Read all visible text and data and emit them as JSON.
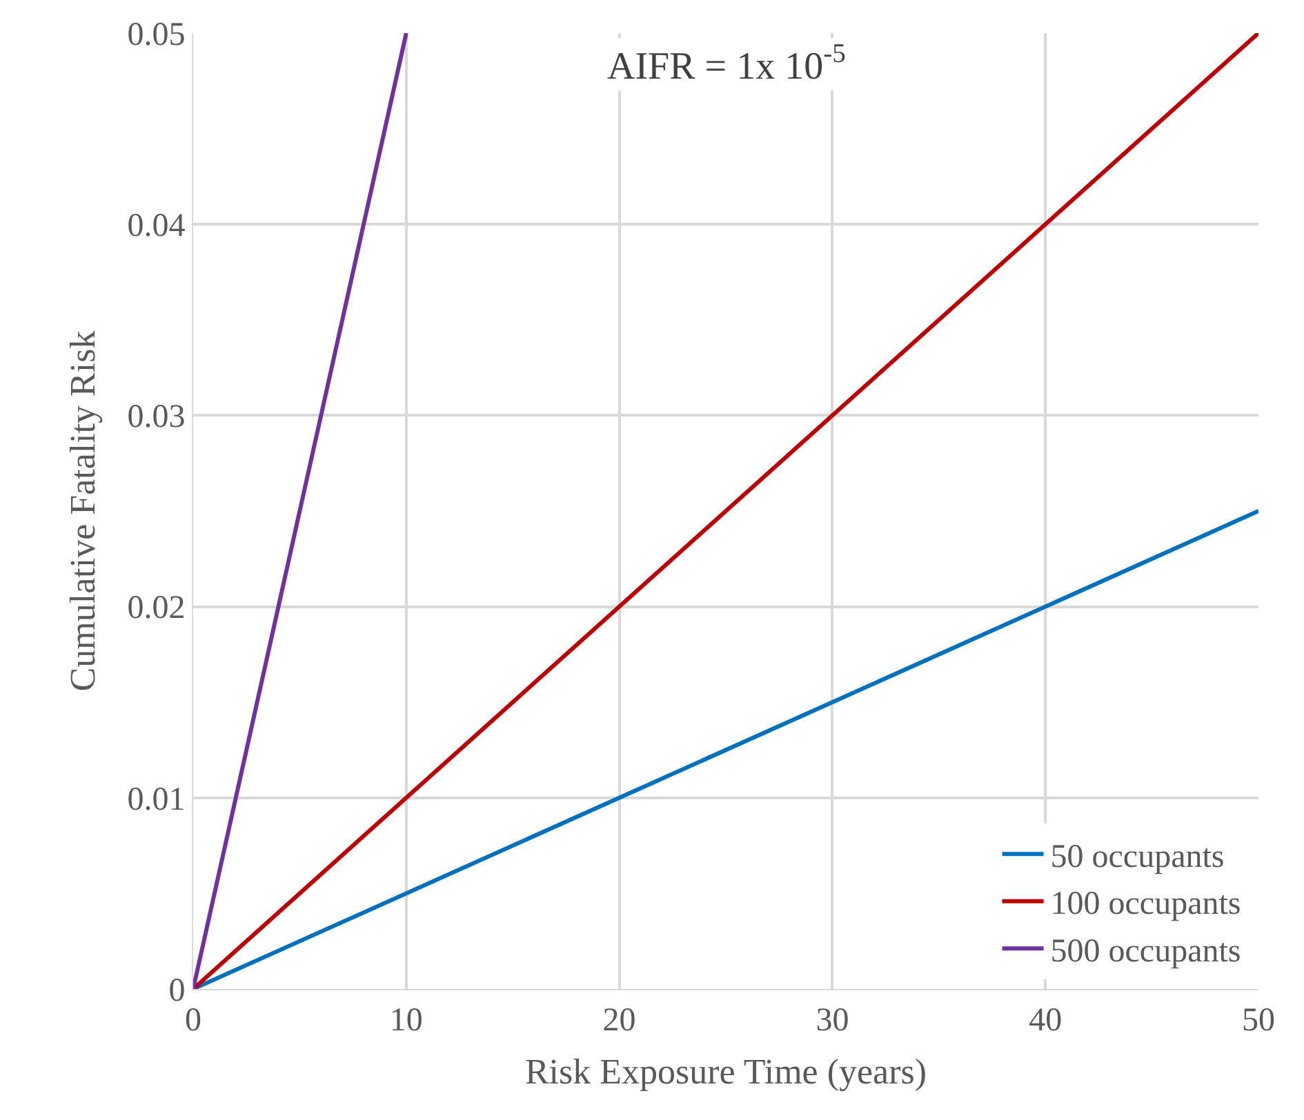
{
  "chart_data": {
    "type": "line",
    "xlabel": "Risk Exposure Time (years)",
    "ylabel": "Cumulative Fatality Risk",
    "annotations": [
      "AIFR = 1x 10$^{-5}$"
    ],
    "series": [
      {
        "name": "50 occupants",
        "color": "#0070c0",
        "x": [
          0,
          50
        ],
        "values": [
          0,
          0.025
        ]
      },
      {
        "name": "100 occupants",
        "color": "#c00000",
        "x": [
          0,
          50
        ],
        "values": [
          0,
          0.05
        ]
      },
      {
        "name": "500 occupants",
        "color": "#7030a0",
        "x": [
          0,
          10
        ],
        "values": [
          0,
          0.05
        ]
      }
    ],
    "xlim": [
      0,
      50
    ],
    "xticks": [
      0,
      10,
      20,
      30,
      40,
      50
    ],
    "ylim": [
      0,
      0.05
    ],
    "yticks": [
      0,
      0.01,
      0.02,
      0.03,
      0.04,
      0.05
    ],
    "grid": true,
    "legend": "bottom right"
  }
}
